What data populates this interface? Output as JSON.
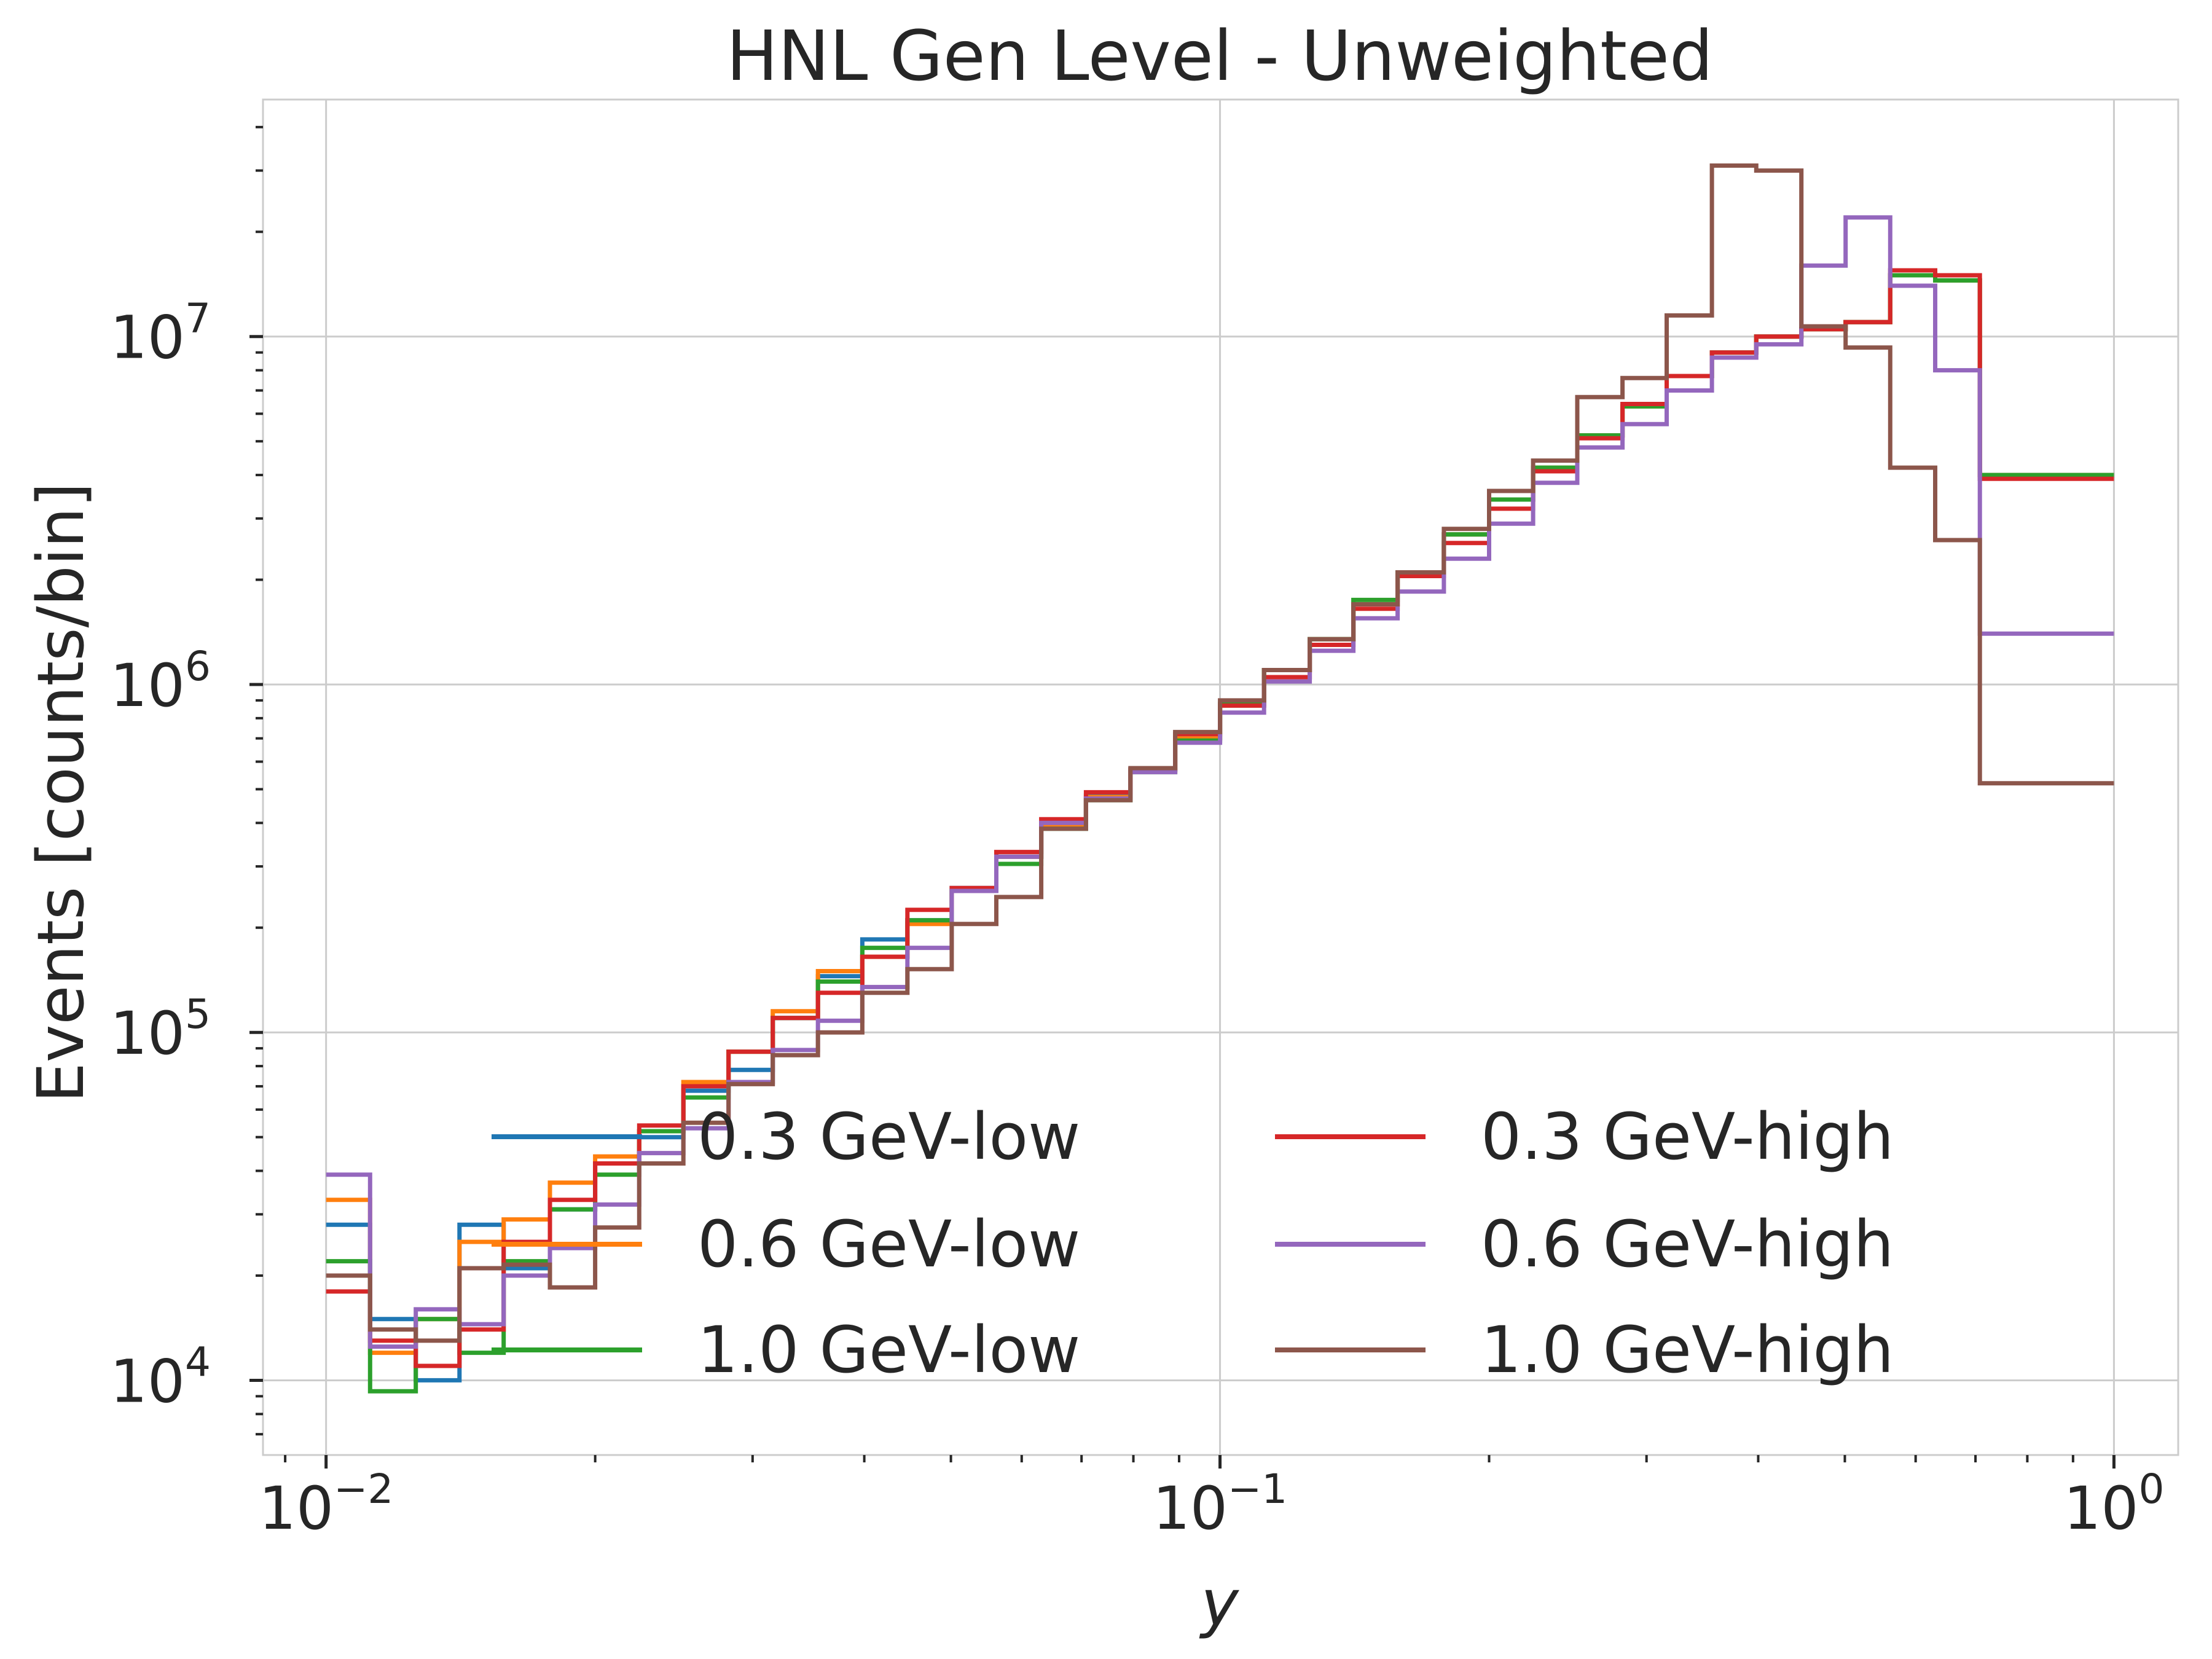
{
  "chart_data": {
    "type": "line",
    "title": "HNL Gen Level - Unweighted",
    "xlabel": "y",
    "ylabel": "Events [counts/bin]",
    "xscale": "log",
    "yscale": "log",
    "xlim": [
      0.0085,
      1.18
    ],
    "ylim": [
      6100,
      48000000
    ],
    "grid": true,
    "legend_position": "lower-center",
    "legend_columns": 2,
    "x_ticks": [
      {
        "base": "10",
        "exp": "−2"
      },
      {
        "base": "10",
        "exp": "−1"
      },
      {
        "base": "10",
        "exp": "0"
      }
    ],
    "y_ticks": [
      {
        "base": "10",
        "exp": "4"
      },
      {
        "base": "10",
        "exp": "5"
      },
      {
        "base": "10",
        "exp": "6"
      },
      {
        "base": "10",
        "exp": "7"
      }
    ],
    "bin_edges": [
      0.01,
      0.0112,
      0.0126,
      0.0141,
      0.0158,
      0.0178,
      0.02,
      0.0224,
      0.0251,
      0.0282,
      0.0316,
      0.0355,
      0.0398,
      0.0447,
      0.0501,
      0.0562,
      0.0631,
      0.0708,
      0.0794,
      0.0891,
      0.1,
      0.112,
      0.126,
      0.141,
      0.158,
      0.178,
      0.2,
      0.224,
      0.251,
      0.282,
      0.316,
      0.355,
      0.398,
      0.447,
      0.501,
      0.562,
      0.631,
      0.708,
      0.794,
      0.891,
      1.0
    ],
    "series": [
      {
        "name": "0.3 GeV-low",
        "color": "#1f77b4",
        "values": [
          28000,
          15000,
          10000,
          28000,
          21000,
          31000,
          42000,
          50000,
          68000,
          78000,
          110000,
          145000,
          185000,
          210000,
          260000,
          320000,
          400000,
          480000,
          570000,
          700000,
          870000,
          1100000,
          1350000,
          1700000,
          2100000,
          2700000,
          3400000,
          4200000,
          5200000,
          6300000,
          7700000,
          9000000,
          10000000,
          10500000,
          11000000,
          15000000,
          14500000,
          4000000,
          4000000,
          4000000
        ]
      },
      {
        "name": "0.6 GeV-low",
        "color": "#ff7f0e",
        "values": [
          33000,
          12000,
          15000,
          25000,
          29000,
          37000,
          44000,
          52000,
          72000,
          88000,
          115000,
          150000,
          165000,
          205000,
          255000,
          320000,
          395000,
          475000,
          565000,
          700000,
          870000,
          1100000,
          1350000,
          1700000,
          2100000,
          2700000,
          3400000,
          4200000,
          5200000,
          6300000,
          7700000,
          9000000,
          10000000,
          10500000,
          11000000,
          15000000,
          14500000,
          4000000,
          4000000,
          4000000
        ]
      },
      {
        "name": "1.0 GeV-low",
        "color": "#2ca02c",
        "values": [
          22000,
          9300,
          15000,
          12000,
          22000,
          31000,
          39000,
          52000,
          65000,
          88000,
          110000,
          140000,
          175000,
          210000,
          255000,
          305000,
          385000,
          465000,
          560000,
          690000,
          880000,
          1100000,
          1350000,
          1750000,
          2100000,
          2700000,
          3400000,
          4200000,
          5200000,
          6300000,
          7700000,
          9000000,
          10000000,
          10500000,
          11000000,
          15000000,
          14500000,
          4000000,
          4000000,
          4000000
        ]
      },
      {
        "name": "0.3 GeV-high",
        "color": "#d62728",
        "values": [
          18000,
          13000,
          11000,
          14000,
          25000,
          33000,
          42000,
          54000,
          70000,
          88000,
          110000,
          130000,
          165000,
          225000,
          260000,
          330000,
          410000,
          490000,
          570000,
          720000,
          870000,
          1050000,
          1300000,
          1650000,
          2050000,
          2550000,
          3200000,
          4100000,
          5100000,
          6400000,
          7700000,
          9000000,
          10000000,
          10500000,
          11000000,
          15500000,
          15000000,
          3900000,
          3900000,
          3900000
        ]
      },
      {
        "name": "0.6 GeV-high",
        "color": "#9467bd",
        "values": [
          39000,
          12500,
          16000,
          14500,
          20000,
          24000,
          32000,
          45000,
          53000,
          72000,
          89000,
          108000,
          135000,
          175000,
          255000,
          320000,
          400000,
          470000,
          560000,
          680000,
          830000,
          1020000,
          1250000,
          1550000,
          1850000,
          2300000,
          2900000,
          3800000,
          4800000,
          5600000,
          7000000,
          8700000,
          9500000,
          16000000,
          22000000,
          14000000,
          8000000,
          1400000,
          1400000,
          1400000
        ]
      },
      {
        "name": "1.0 GeV-high",
        "color": "#8c564b",
        "values": [
          20000,
          14000,
          13000,
          21000,
          21500,
          18500,
          27500,
          42000,
          55000,
          71000,
          86000,
          100000,
          130000,
          152000,
          205000,
          245000,
          385000,
          465000,
          575000,
          730000,
          900000,
          1100000,
          1350000,
          1700000,
          2100000,
          2800000,
          3600000,
          4400000,
          6700000,
          7600000,
          11500000,
          31000000,
          30000000,
          10700000,
          9300000,
          4200000,
          2600000,
          520000,
          520000,
          520000
        ]
      }
    ]
  }
}
